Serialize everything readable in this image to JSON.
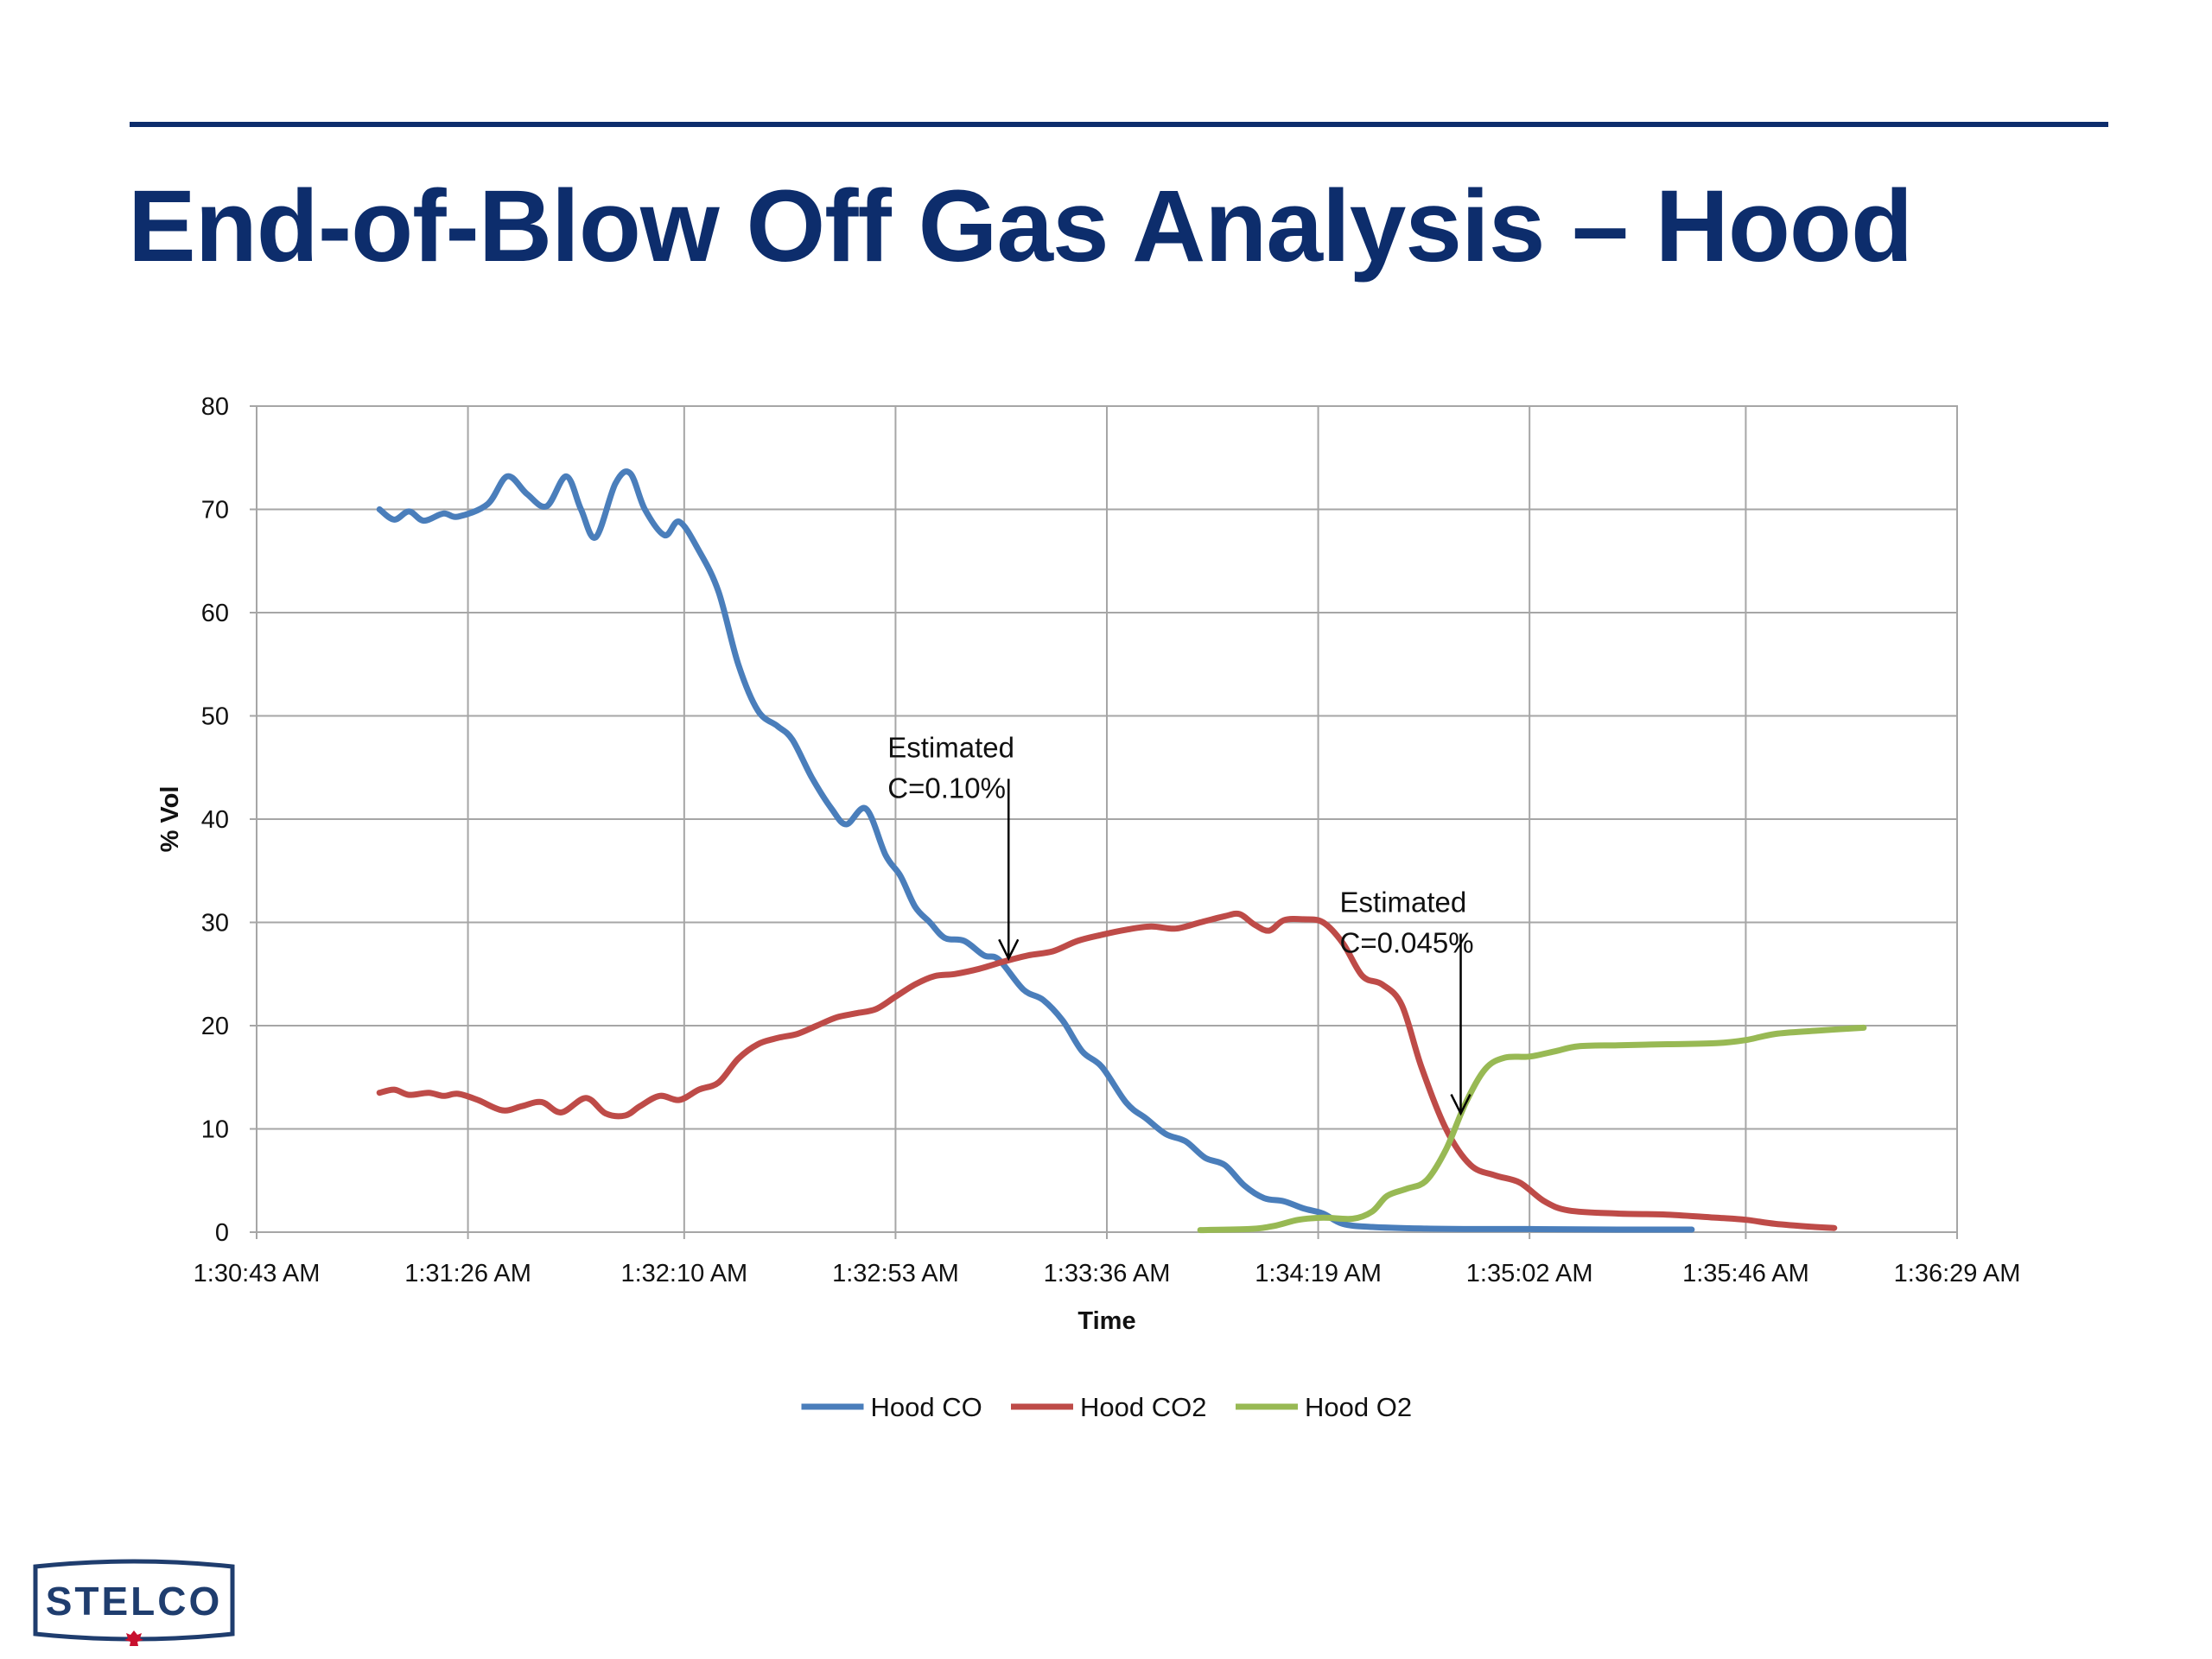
{
  "slide": {
    "title": "End-of-Blow Off Gas Analysis – Hood"
  },
  "logo": {
    "text": "STELCO",
    "color": "#1f3d6e",
    "leaf_color": "#c8102e"
  },
  "chart_data": {
    "type": "line",
    "xlabel": "Time",
    "ylabel": "% Vol",
    "ylim": [
      0,
      80
    ],
    "yticks": [
      0,
      10,
      20,
      30,
      40,
      50,
      60,
      70,
      80
    ],
    "xlim": [
      "1:30:43 AM",
      "1:36:29 AM"
    ],
    "xticks": [
      "1:30:43 AM",
      "1:31:26 AM",
      "1:32:10 AM",
      "1:32:53 AM",
      "1:33:36 AM",
      "1:34:19 AM",
      "1:35:02 AM",
      "1:35:46 AM",
      "1:36:29 AM"
    ],
    "grid": true,
    "legend": "bottom",
    "series": [
      {
        "name": "Hood CO",
        "color": "#4a7ebb",
        "points": [
          [
            "1:31:08 AM",
            70
          ],
          [
            "1:31:11 AM",
            69
          ],
          [
            "1:31:14 AM",
            69.8
          ],
          [
            "1:31:17 AM",
            68.9
          ],
          [
            "1:31:21 AM",
            69.6
          ],
          [
            "1:31:24 AM",
            69.3
          ],
          [
            "1:31:30 AM",
            70.5
          ],
          [
            "1:31:34 AM",
            73.2
          ],
          [
            "1:31:38 AM",
            71.5
          ],
          [
            "1:31:42 AM",
            70.3
          ],
          [
            "1:31:46 AM",
            73.2
          ],
          [
            "1:31:49 AM",
            70
          ],
          [
            "1:31:52 AM",
            67.3
          ],
          [
            "1:31:56 AM",
            72.5
          ],
          [
            "1:31:59 AM",
            73.5
          ],
          [
            "1:32:02 AM",
            70
          ],
          [
            "1:32:06 AM",
            67.5
          ],
          [
            "1:32:09 AM",
            68.8
          ],
          [
            "1:32:13 AM",
            66
          ],
          [
            "1:32:17 AM",
            62
          ],
          [
            "1:32:21 AM",
            55
          ],
          [
            "1:32:25 AM",
            50.5
          ],
          [
            "1:32:29 AM",
            49
          ],
          [
            "1:32:32 AM",
            47.7
          ],
          [
            "1:32:36 AM",
            44
          ],
          [
            "1:32:40 AM",
            41
          ],
          [
            "1:32:43 AM",
            39.5
          ],
          [
            "1:32:47 AM",
            41
          ],
          [
            "1:32:51 AM",
            36.5
          ],
          [
            "1:32:54 AM",
            34.5
          ],
          [
            "1:32:57 AM",
            31.5
          ],
          [
            "1:33:00 AM",
            30
          ],
          [
            "1:33:03 AM",
            28.5
          ],
          [
            "1:33:07 AM",
            28.2
          ],
          [
            "1:33:11 AM",
            26.8
          ],
          [
            "1:33:14 AM",
            26.4
          ],
          [
            "1:33:19 AM",
            23.5
          ],
          [
            "1:33:23 AM",
            22.5
          ],
          [
            "1:33:27 AM",
            20.5
          ],
          [
            "1:33:31 AM",
            17.5
          ],
          [
            "1:33:35 AM",
            16
          ],
          [
            "1:33:40 AM",
            12.5
          ],
          [
            "1:33:44 AM",
            11
          ],
          [
            "1:33:48 AM",
            9.5
          ],
          [
            "1:33:52 AM",
            8.8
          ],
          [
            "1:33:56 AM",
            7.2
          ],
          [
            "1:34:00 AM",
            6.5
          ],
          [
            "1:34:04 AM",
            4.5
          ],
          [
            "1:34:08 AM",
            3.3
          ],
          [
            "1:34:12 AM",
            3.0
          ],
          [
            "1:34:16 AM",
            2.3
          ],
          [
            "1:34:20 AM",
            1.8
          ],
          [
            "1:34:24 AM",
            0.8
          ],
          [
            "1:34:30 AM",
            0.5
          ],
          [
            "1:34:40 AM",
            0.35
          ],
          [
            "1:34:50 AM",
            0.3
          ],
          [
            "1:35:02 AM",
            0.3
          ],
          [
            "1:35:20 AM",
            0.25
          ],
          [
            "1:35:35 AM",
            0.25
          ]
        ]
      },
      {
        "name": "Hood CO2",
        "color": "#be4b48",
        "points": [
          [
            "1:31:08 AM",
            13.5
          ],
          [
            "1:31:11 AM",
            13.8
          ],
          [
            "1:31:14 AM",
            13.3
          ],
          [
            "1:31:18 AM",
            13.5
          ],
          [
            "1:31:21 AM",
            13.2
          ],
          [
            "1:31:24 AM",
            13.4
          ],
          [
            "1:31:28 AM",
            12.8
          ],
          [
            "1:31:33 AM",
            11.8
          ],
          [
            "1:31:37 AM",
            12.2
          ],
          [
            "1:31:41 AM",
            12.6
          ],
          [
            "1:31:45 AM",
            11.6
          ],
          [
            "1:31:50 AM",
            13
          ],
          [
            "1:31:54 AM",
            11.5
          ],
          [
            "1:31:58 AM",
            11.3
          ],
          [
            "1:32:01 AM",
            12.2
          ],
          [
            "1:32:05 AM",
            13.2
          ],
          [
            "1:32:09 AM",
            12.8
          ],
          [
            "1:32:13 AM",
            13.8
          ],
          [
            "1:32:17 AM",
            14.5
          ],
          [
            "1:32:21 AM",
            16.8
          ],
          [
            "1:32:25 AM",
            18.2
          ],
          [
            "1:32:29 AM",
            18.8
          ],
          [
            "1:32:33 AM",
            19.2
          ],
          [
            "1:32:37 AM",
            20
          ],
          [
            "1:32:41 AM",
            20.8
          ],
          [
            "1:32:45 AM",
            21.2
          ],
          [
            "1:32:49 AM",
            21.6
          ],
          [
            "1:32:53 AM",
            22.8
          ],
          [
            "1:32:57 AM",
            24
          ],
          [
            "1:33:01 AM",
            24.8
          ],
          [
            "1:33:05 AM",
            25
          ],
          [
            "1:33:10 AM",
            25.5
          ],
          [
            "1:33:15 AM",
            26.2
          ],
          [
            "1:33:20 AM",
            26.8
          ],
          [
            "1:33:25 AM",
            27.2
          ],
          [
            "1:33:30 AM",
            28.2
          ],
          [
            "1:33:35 AM",
            28.8
          ],
          [
            "1:33:40 AM",
            29.3
          ],
          [
            "1:33:45 AM",
            29.6
          ],
          [
            "1:33:50 AM",
            29.4
          ],
          [
            "1:33:55 AM",
            30
          ],
          [
            "1:34:00 AM",
            30.6
          ],
          [
            "1:34:03 AM",
            30.8
          ],
          [
            "1:34:06 AM",
            29.8
          ],
          [
            "1:34:09 AM",
            29.2
          ],
          [
            "1:34:12 AM",
            30.2
          ],
          [
            "1:34:16 AM",
            30.3
          ],
          [
            "1:34:20 AM",
            30
          ],
          [
            "1:34:24 AM",
            28
          ],
          [
            "1:34:28 AM",
            24.8
          ],
          [
            "1:34:32 AM",
            24
          ],
          [
            "1:34:36 AM",
            22
          ],
          [
            "1:34:40 AM",
            16
          ],
          [
            "1:34:45 AM",
            10
          ],
          [
            "1:34:50 AM",
            6.5
          ],
          [
            "1:34:55 AM",
            5.5
          ],
          [
            "1:35:00 AM",
            4.8
          ],
          [
            "1:35:05 AM",
            3
          ],
          [
            "1:35:10 AM",
            2.1
          ],
          [
            "1:35:20 AM",
            1.8
          ],
          [
            "1:35:30 AM",
            1.7
          ],
          [
            "1:35:40 AM",
            1.4
          ],
          [
            "1:35:46 AM",
            1.2
          ],
          [
            "1:35:52 AM",
            0.8
          ],
          [
            "1:36:00 AM",
            0.5
          ],
          [
            "1:36:04 AM",
            0.4
          ]
        ]
      },
      {
        "name": "Hood O2",
        "color": "#98b954",
        "points": [
          [
            "1:33:55 AM",
            0.2
          ],
          [
            "1:34:05 AM",
            0.3
          ],
          [
            "1:34:10 AM",
            0.6
          ],
          [
            "1:34:15 AM",
            1.2
          ],
          [
            "1:34:20 AM",
            1.4
          ],
          [
            "1:34:26 AM",
            1.3
          ],
          [
            "1:34:30 AM",
            2.0
          ],
          [
            "1:34:33 AM",
            3.5
          ],
          [
            "1:34:37 AM",
            4.2
          ],
          [
            "1:34:41 AM",
            5.0
          ],
          [
            "1:34:45 AM",
            8.0
          ],
          [
            "1:34:49 AM",
            12.5
          ],
          [
            "1:34:53 AM",
            15.8
          ],
          [
            "1:34:57 AM",
            16.9
          ],
          [
            "1:35:02 AM",
            17.0
          ],
          [
            "1:35:07 AM",
            17.5
          ],
          [
            "1:35:12 AM",
            18.0
          ],
          [
            "1:35:20 AM",
            18.1
          ],
          [
            "1:35:30 AM",
            18.2
          ],
          [
            "1:35:40 AM",
            18.3
          ],
          [
            "1:35:46 AM",
            18.6
          ],
          [
            "1:35:52 AM",
            19.2
          ],
          [
            "1:36:00 AM",
            19.5
          ],
          [
            "1:36:10 AM",
            19.8
          ]
        ]
      }
    ],
    "annotations": [
      {
        "lines": [
          "Estimated",
          "C=0.10%"
        ],
        "target": [
          "1:33:16 AM",
          26.5
        ]
      },
      {
        "lines": [
          "Estimated",
          "C=0.045%"
        ],
        "target": [
          "1:34:48 AM",
          11.5
        ]
      }
    ]
  }
}
